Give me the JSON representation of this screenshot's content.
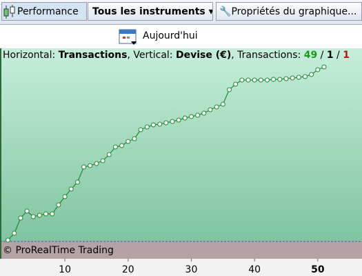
{
  "toolbar": {
    "performance": "Performance",
    "instruments": "Tous les instruments",
    "properties": "Propriétés du graphique...",
    "today": "Aujourd'hui"
  },
  "info": {
    "h_label": "Horizontal: ",
    "h_value": "Transactions",
    "v_label": ", Vertical: ",
    "v_value": "Devise (€)",
    "t_label": ", Transactions: ",
    "t_total": 49,
    "sep1": " / ",
    "t_mid": 1,
    "sep2": " / ",
    "t_loss": 1
  },
  "watermark": "© ProRealTime Trading",
  "chart_data": {
    "type": "line",
    "x": [
      1,
      2,
      3,
      4,
      5,
      6,
      7,
      8,
      9,
      10,
      11,
      12,
      13,
      14,
      15,
      16,
      17,
      18,
      19,
      20,
      21,
      22,
      23,
      24,
      25,
      26,
      27,
      28,
      29,
      30,
      31,
      32,
      33,
      34,
      35,
      36,
      37,
      38,
      39,
      40,
      41,
      42,
      43,
      44,
      45,
      46,
      47,
      48,
      49,
      50,
      51
    ],
    "series": [
      {
        "color": "#1f8a2e",
        "values": [
          2,
          12,
          34,
          44,
          36,
          38,
          40,
          40,
          53,
          65,
          76,
          86,
          108,
          110,
          113,
          117,
          126,
          137,
          139,
          145,
          149,
          162,
          166,
          169,
          170,
          172,
          174,
          176,
          179,
          181,
          183,
          186,
          191,
          195,
          199,
          220,
          228,
          234,
          234,
          234,
          234,
          234,
          235,
          235,
          236,
          237,
          238,
          239,
          242,
          249,
          253
        ]
      }
    ],
    "xlim": [
      0,
      57
    ],
    "ylim": [
      0,
      280
    ],
    "xticks": [
      10,
      20,
      30,
      40,
      50
    ],
    "bold_xtick": 50
  }
}
